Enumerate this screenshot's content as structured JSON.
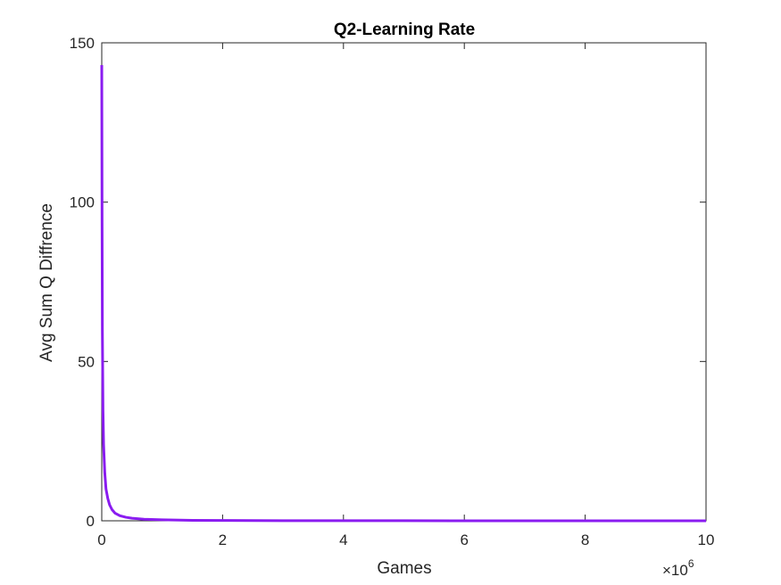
{
  "chart_data": {
    "type": "line",
    "title": "Q2-Learning Rate",
    "xlabel": "Games",
    "ylabel": "Avg Sum Q Diffrence",
    "x_exponent_label": {
      "times": "×10",
      "power": "6"
    },
    "xlim": [
      0,
      10
    ],
    "ylim": [
      0,
      150
    ],
    "x_ticks": [
      0,
      2,
      4,
      6,
      8,
      10
    ],
    "x_tick_labels": [
      "0",
      "2",
      "4",
      "6",
      "8",
      "10"
    ],
    "y_ticks": [
      0,
      50,
      100,
      150
    ],
    "y_tick_labels": [
      "0",
      "50",
      "100",
      "150"
    ],
    "grid": false,
    "series": [
      {
        "color": "#8a1cf0",
        "x": [
          0,
          0.005,
          0.01,
          0.02,
          0.03,
          0.05,
          0.07,
          0.1,
          0.13,
          0.17,
          0.22,
          0.3,
          0.4,
          0.5,
          0.7,
          1.0,
          1.5,
          2,
          3,
          4,
          5,
          6,
          7,
          8,
          9,
          10
        ],
        "y": [
          143,
          95,
          60,
          35,
          24,
          15,
          10,
          7,
          5,
          3.5,
          2.4,
          1.6,
          1.1,
          0.8,
          0.5,
          0.3,
          0.15,
          0.1,
          0.05,
          0.03,
          0.02,
          0.01,
          0.01,
          0.01,
          0.01,
          0.01
        ]
      }
    ]
  }
}
